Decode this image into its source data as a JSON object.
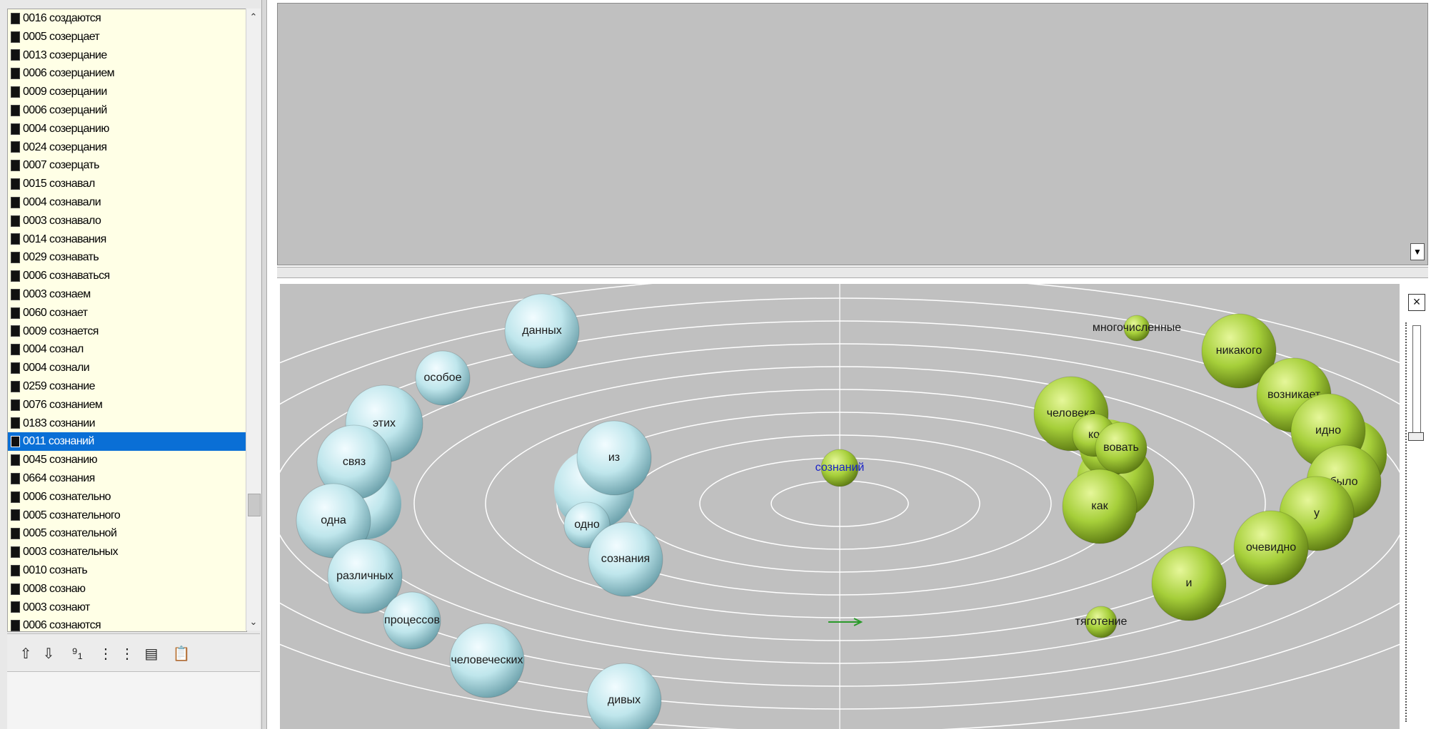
{
  "word_list": {
    "selected_index": 23,
    "items": [
      "0016 создаются",
      "0005 созерцает",
      "0013 созерцание",
      "0006 созерцанием",
      "0009 созерцании",
      "0006 созерцаний",
      "0004 созерцанию",
      "0024 созерцания",
      "0007 созерцать",
      "0015 сознавал",
      "0004 сознавали",
      "0003 сознавало",
      "0014 сознавания",
      "0029 сознавать",
      "0006 сознаваться",
      "0003 сознаем",
      "0060 сознает",
      "0009 сознается",
      "0004 сознал",
      "0004 сознали",
      "0259 сознание",
      "0076 сознанием",
      "0183 сознании",
      "0011 сознаний",
      "0045 сознанию",
      "0664 сознания",
      "0006 сознательно",
      "0005 сознательного",
      "0005 сознательной",
      "0003 сознательных",
      "0010 сознать",
      "0008 сознаю",
      "0003 сознают",
      "0006 сознаются"
    ],
    "scroll_up_icon": "triangle-up",
    "scroll_down_icon": "triangle-down"
  },
  "toolbar": {
    "buttons": [
      {
        "name": "move-up-button",
        "icon": "arrow-up-icon",
        "glyph": "⇧"
      },
      {
        "name": "move-down-button",
        "icon": "arrow-down-icon",
        "glyph": "⇩"
      },
      {
        "name": "sort-numeric-button",
        "icon": "sort-91-icon",
        "glyph": "⁹₁"
      },
      {
        "name": "tree-button-1",
        "icon": "tree-view-icon",
        "glyph": "⋮"
      },
      {
        "name": "tree-button-2",
        "icon": "tree-view-icon",
        "glyph": "⋮"
      },
      {
        "name": "export-button",
        "icon": "export-icon",
        "glyph": "▤"
      },
      {
        "name": "paste-button",
        "icon": "clipboard-icon",
        "glyph": "📋"
      }
    ]
  },
  "top_panel": {
    "scroll_icon": "triangle-down"
  },
  "viz": {
    "colors": {
      "cold": "#bfe6ec",
      "hot": "#a6cf3a",
      "ring": "#ffffff",
      "bg": "#c0c0c0",
      "arrow": "#2a9a2a"
    },
    "close_label": "×",
    "center": {
      "label": "сознаний"
    },
    "left_bubbles": [
      "данных",
      "особое",
      "этих",
      "связ",
      "одна",
      "различных",
      "процессов",
      "человеческих",
      "дивых",
      "из",
      "одно",
      "сознания"
    ],
    "right_bubbles": [
      "многочисленные",
      "никакого",
      "возникает",
      "идно",
      "было",
      "у",
      "очевидно",
      "и",
      "человека",
      "ко",
      "вовать",
      "как",
      "тяготение"
    ]
  }
}
